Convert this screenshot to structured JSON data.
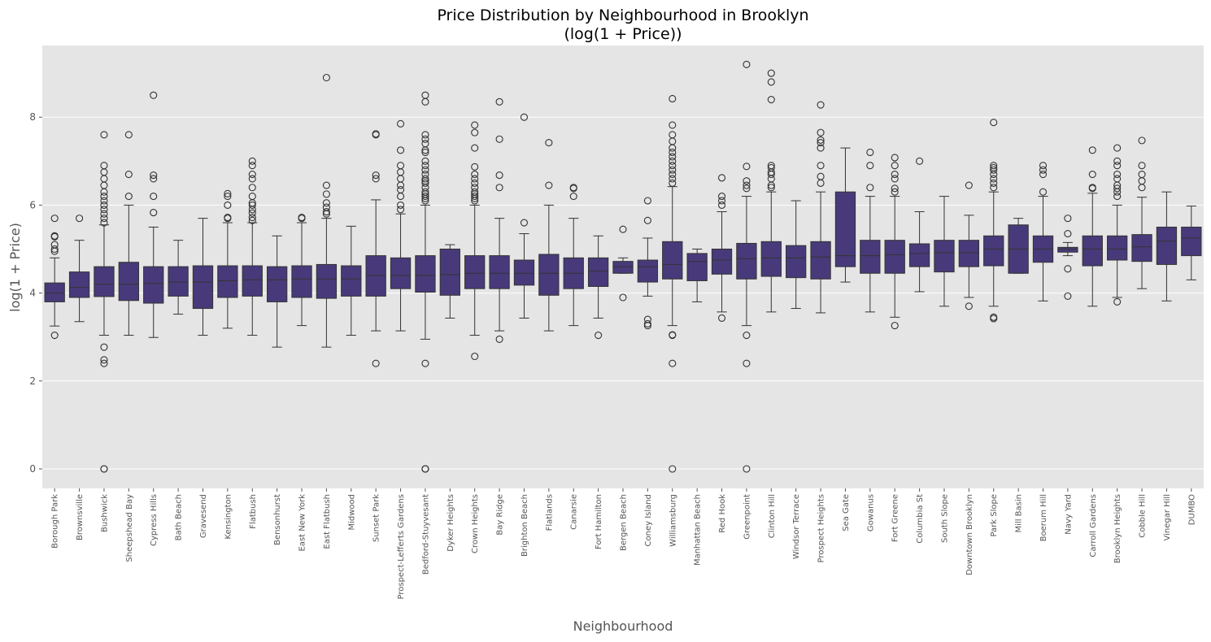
{
  "chart_data": {
    "type": "box",
    "title": "Price Distribution by Neighbourhood in Brooklyn",
    "subtitle": "(log(1 + Price))",
    "xlabel": "Neighbourhood",
    "ylabel": "log(1 + Price)",
    "ylim": [
      -0.45,
      9.7
    ],
    "yticks": [
      0,
      2,
      4,
      6,
      8
    ],
    "grid": true,
    "box_color": "#483a7a",
    "background_color": "#e5e5e5",
    "grid_color": "#ffffff",
    "categories": [
      {
        "name": "Borough Park",
        "q1": 3.8,
        "median": 4.0,
        "q3": 4.23,
        "wlo": 3.25,
        "whi": 4.8,
        "out": [
          3.04,
          4.95,
          5.0,
          5.1,
          5.28,
          5.3,
          5.7
        ]
      },
      {
        "name": "Brownsville",
        "q1": 3.9,
        "median": 4.13,
        "q3": 4.48,
        "wlo": 3.35,
        "whi": 5.2,
        "out": [
          5.7
        ]
      },
      {
        "name": "Bushwick",
        "q1": 3.92,
        "median": 4.2,
        "q3": 4.6,
        "wlo": 3.04,
        "whi": 5.55,
        "out": [
          0.0,
          0.0,
          2.4,
          2.48,
          2.77,
          5.6,
          5.7,
          5.8,
          5.9,
          6.0,
          6.1,
          6.2,
          6.3,
          6.45,
          6.6,
          6.75,
          6.9,
          7.6
        ]
      },
      {
        "name": "Sheepshead Bay",
        "q1": 3.83,
        "median": 4.2,
        "q3": 4.7,
        "wlo": 3.04,
        "whi": 6.0,
        "out": [
          6.2,
          6.7,
          7.6
        ]
      },
      {
        "name": "Cypress Hills",
        "q1": 3.77,
        "median": 4.22,
        "q3": 4.6,
        "wlo": 2.99,
        "whi": 5.5,
        "out": [
          5.83,
          6.2,
          6.6,
          6.68,
          8.5
        ]
      },
      {
        "name": "Bath Beach",
        "q1": 3.93,
        "median": 4.25,
        "q3": 4.6,
        "wlo": 3.52,
        "whi": 5.2,
        "out": []
      },
      {
        "name": "Gravesend",
        "q1": 3.65,
        "median": 4.25,
        "q3": 4.62,
        "wlo": 3.04,
        "whi": 5.7,
        "out": []
      },
      {
        "name": "Kensington",
        "q1": 3.9,
        "median": 4.28,
        "q3": 4.62,
        "wlo": 3.2,
        "whi": 5.6,
        "out": [
          5.7,
          5.72,
          6.0,
          6.2,
          6.26
        ]
      },
      {
        "name": "Flatbush",
        "q1": 3.93,
        "median": 4.3,
        "q3": 4.62,
        "wlo": 3.04,
        "whi": 5.6,
        "out": [
          5.65,
          5.72,
          5.82,
          5.9,
          6.0,
          6.05,
          6.2,
          6.4,
          6.6,
          6.7,
          6.9,
          7.0
        ]
      },
      {
        "name": "Bensonhurst",
        "q1": 3.8,
        "median": 4.3,
        "q3": 4.6,
        "wlo": 2.77,
        "whi": 5.3,
        "out": []
      },
      {
        "name": "East New York",
        "q1": 3.9,
        "median": 4.32,
        "q3": 4.62,
        "wlo": 3.26,
        "whi": 5.6,
        "out": [
          5.7,
          5.72
        ]
      },
      {
        "name": "East Flatbush",
        "q1": 3.88,
        "median": 4.32,
        "q3": 4.65,
        "wlo": 2.77,
        "whi": 5.7,
        "out": [
          5.8,
          5.85,
          5.95,
          6.05,
          6.25,
          6.45,
          8.9
        ]
      },
      {
        "name": "Midwood",
        "q1": 3.93,
        "median": 4.32,
        "q3": 4.62,
        "wlo": 3.04,
        "whi": 5.52,
        "out": []
      },
      {
        "name": "Sunset Park",
        "q1": 3.93,
        "median": 4.4,
        "q3": 4.85,
        "wlo": 3.14,
        "whi": 6.12,
        "out": [
          2.4,
          6.6,
          6.68,
          7.6,
          7.62
        ]
      },
      {
        "name": "Prospect-Lefferts Gardens",
        "q1": 4.1,
        "median": 4.4,
        "q3": 4.8,
        "wlo": 3.14,
        "whi": 5.8,
        "out": [
          5.9,
          6.0,
          6.2,
          6.35,
          6.45,
          6.6,
          6.75,
          6.9,
          7.25,
          7.85
        ]
      },
      {
        "name": "Bedford-Stuyvesant",
        "q1": 4.02,
        "median": 4.4,
        "q3": 4.85,
        "wlo": 2.95,
        "whi": 6.0,
        "out": [
          0.0,
          0.0,
          0.0,
          2.4,
          6.1,
          6.15,
          6.2,
          6.25,
          6.3,
          6.4,
          6.5,
          6.55,
          6.6,
          6.7,
          6.8,
          6.9,
          7.0,
          7.2,
          7.25,
          7.4,
          7.5,
          7.6,
          8.35,
          8.5
        ]
      },
      {
        "name": "Dyker Heights",
        "q1": 3.95,
        "median": 4.42,
        "q3": 5.0,
        "wlo": 3.43,
        "whi": 5.1,
        "out": []
      },
      {
        "name": "Crown Heights",
        "q1": 4.1,
        "median": 4.45,
        "q3": 4.85,
        "wlo": 3.04,
        "whi": 6.0,
        "out": [
          2.56,
          6.1,
          6.15,
          6.2,
          6.25,
          6.3,
          6.4,
          6.5,
          6.6,
          6.7,
          6.87,
          7.3,
          7.65,
          7.82
        ]
      },
      {
        "name": "Bay Ridge",
        "q1": 4.1,
        "median": 4.45,
        "q3": 4.85,
        "wlo": 3.14,
        "whi": 5.7,
        "out": [
          2.95,
          6.4,
          6.68,
          7.5,
          8.35
        ]
      },
      {
        "name": "Brighton Beach",
        "q1": 4.18,
        "median": 4.45,
        "q3": 4.75,
        "wlo": 3.43,
        "whi": 5.35,
        "out": [
          5.6,
          8.0
        ]
      },
      {
        "name": "Flatlands",
        "q1": 3.95,
        "median": 4.45,
        "q3": 4.88,
        "wlo": 3.14,
        "whi": 6.0,
        "out": [
          6.45,
          7.42
        ]
      },
      {
        "name": "Canarsie",
        "q1": 4.1,
        "median": 4.45,
        "q3": 4.8,
        "wlo": 3.26,
        "whi": 5.7,
        "out": [
          6.2,
          6.38,
          6.4
        ]
      },
      {
        "name": "Fort Hamilton",
        "q1": 4.15,
        "median": 4.5,
        "q3": 4.8,
        "wlo": 3.43,
        "whi": 5.3,
        "out": [
          3.04
        ]
      },
      {
        "name": "Bergen Beach",
        "q1": 4.45,
        "median": 4.6,
        "q3": 4.72,
        "wlo": 4.45,
        "whi": 4.8,
        "out": [
          3.9,
          5.45
        ]
      },
      {
        "name": "Coney Island",
        "q1": 4.25,
        "median": 4.6,
        "q3": 4.75,
        "wlo": 3.93,
        "whi": 5.25,
        "out": [
          3.26,
          3.3,
          3.4,
          5.65,
          6.1
        ]
      },
      {
        "name": "Williamsburg",
        "q1": 4.32,
        "median": 4.65,
        "q3": 5.17,
        "wlo": 3.26,
        "whi": 6.42,
        "out": [
          0.0,
          2.4,
          3.04,
          3.05,
          6.5,
          6.6,
          6.7,
          6.8,
          6.9,
          7.0,
          7.1,
          7.2,
          7.3,
          7.45,
          7.6,
          7.82,
          8.42
        ]
      },
      {
        "name": "Manhattan Beach",
        "q1": 4.28,
        "median": 4.72,
        "q3": 4.9,
        "wlo": 3.8,
        "whi": 5.0,
        "out": []
      },
      {
        "name": "Red Hook",
        "q1": 4.43,
        "median": 4.75,
        "q3": 5.0,
        "wlo": 3.57,
        "whi": 5.85,
        "out": [
          3.43,
          6.0,
          6.1,
          6.2,
          6.62
        ]
      },
      {
        "name": "Greenpoint",
        "q1": 4.32,
        "median": 4.78,
        "q3": 5.13,
        "wlo": 3.26,
        "whi": 6.2,
        "out": [
          0.0,
          2.4,
          3.04,
          6.38,
          6.45,
          6.55,
          6.88,
          9.2
        ]
      },
      {
        "name": "Clinton Hill",
        "q1": 4.38,
        "median": 4.8,
        "q3": 5.17,
        "wlo": 3.57,
        "whi": 6.3,
        "out": [
          6.4,
          6.45,
          6.6,
          6.7,
          6.75,
          6.85,
          6.9,
          8.4,
          8.8,
          9.0
        ]
      },
      {
        "name": "Windsor Terrace",
        "q1": 4.35,
        "median": 4.8,
        "q3": 5.08,
        "wlo": 3.65,
        "whi": 6.1,
        "out": []
      },
      {
        "name": "Prospect Heights",
        "q1": 4.32,
        "median": 4.82,
        "q3": 5.17,
        "wlo": 3.55,
        "whi": 6.3,
        "out": [
          6.5,
          6.65,
          6.9,
          7.3,
          7.42,
          7.48,
          7.65,
          8.28
        ]
      },
      {
        "name": "Sea Gate",
        "q1": 4.6,
        "median": 4.85,
        "q3": 6.3,
        "wlo": 4.25,
        "whi": 7.3,
        "out": []
      },
      {
        "name": "Gowanus",
        "q1": 4.45,
        "median": 4.85,
        "q3": 5.2,
        "wlo": 3.57,
        "whi": 6.2,
        "out": [
          6.4,
          6.9,
          7.2
        ]
      },
      {
        "name": "Fort Greene",
        "q1": 4.45,
        "median": 4.87,
        "q3": 5.2,
        "wlo": 3.45,
        "whi": 6.2,
        "out": [
          3.26,
          6.3,
          6.38,
          6.6,
          6.7,
          6.9,
          7.08
        ]
      },
      {
        "name": "Columbia St",
        "q1": 4.6,
        "median": 4.9,
        "q3": 5.12,
        "wlo": 4.03,
        "whi": 5.85,
        "out": [
          7.0
        ]
      },
      {
        "name": "South Slope",
        "q1": 4.48,
        "median": 4.92,
        "q3": 5.2,
        "wlo": 3.7,
        "whi": 6.2,
        "out": []
      },
      {
        "name": "Downtown Brooklyn",
        "q1": 4.6,
        "median": 4.92,
        "q3": 5.2,
        "wlo": 3.9,
        "whi": 5.77,
        "out": [
          3.7,
          6.45
        ]
      },
      {
        "name": "Park Slope",
        "q1": 4.62,
        "median": 5.0,
        "q3": 5.3,
        "wlo": 3.7,
        "whi": 6.3,
        "out": [
          3.42,
          3.45,
          6.4,
          6.5,
          6.6,
          6.7,
          6.8,
          6.85,
          6.9,
          7.88
        ]
      },
      {
        "name": "Mill Basin",
        "q1": 4.45,
        "median": 5.0,
        "q3": 5.55,
        "wlo": 4.45,
        "whi": 5.7,
        "out": []
      },
      {
        "name": "Boerum Hill",
        "q1": 4.7,
        "median": 5.0,
        "q3": 5.3,
        "wlo": 3.82,
        "whi": 6.2,
        "out": [
          6.3,
          6.7,
          6.8,
          6.9
        ]
      },
      {
        "name": "Navy Yard",
        "q1": 4.93,
        "median": 5.0,
        "q3": 5.04,
        "wlo": 4.85,
        "whi": 5.15,
        "out": [
          3.93,
          4.55,
          5.35,
          5.7
        ]
      },
      {
        "name": "Carroll Gardens",
        "q1": 4.62,
        "median": 5.0,
        "q3": 5.3,
        "wlo": 3.7,
        "whi": 6.27,
        "out": [
          6.38,
          6.4,
          6.7,
          7.25
        ]
      },
      {
        "name": "Brooklyn Heights",
        "q1": 4.75,
        "median": 5.0,
        "q3": 5.3,
        "wlo": 3.9,
        "whi": 6.0,
        "out": [
          3.8,
          6.2,
          6.3,
          6.38,
          6.45,
          6.6,
          6.7,
          6.9,
          7.0,
          7.3
        ]
      },
      {
        "name": "Cobble Hill",
        "q1": 4.72,
        "median": 5.05,
        "q3": 5.33,
        "wlo": 4.1,
        "whi": 6.18,
        "out": [
          6.4,
          6.55,
          6.7,
          6.9,
          7.47
        ]
      },
      {
        "name": "Vinegar Hill",
        "q1": 4.65,
        "median": 5.18,
        "q3": 5.5,
        "wlo": 3.82,
        "whi": 6.3,
        "out": []
      },
      {
        "name": "DUMBO",
        "q1": 4.85,
        "median": 5.25,
        "q3": 5.5,
        "wlo": 4.3,
        "whi": 5.98,
        "out": []
      }
    ]
  }
}
